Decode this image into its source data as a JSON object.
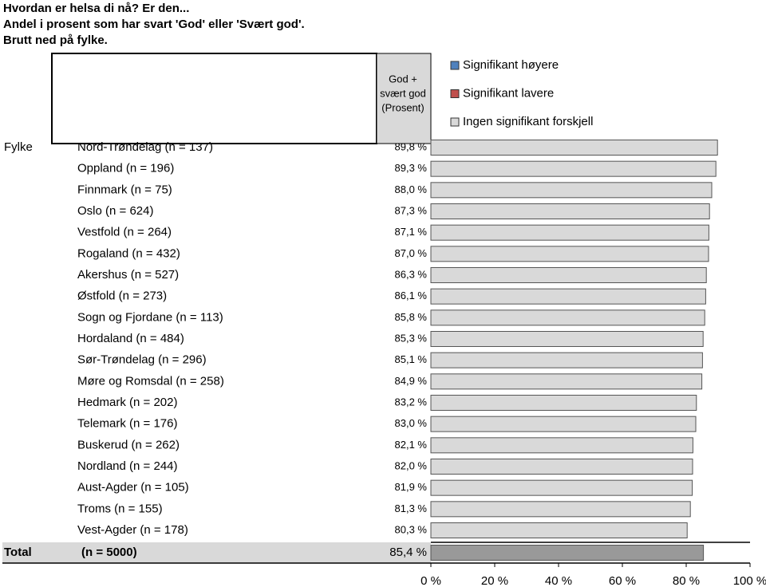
{
  "chart_data": {
    "type": "hbar",
    "title_lines": [
      "Hvordan er helsa di nå? Er den...",
      "Andel i prosent som har svart 'God' eller 'Svært god'.",
      "Brutt ned på fylke."
    ],
    "column_header": [
      "God +",
      "svært god",
      "(Prosent)"
    ],
    "group_label": "Fylke",
    "categories": [
      "Nord-Trøndelag (n = 137)",
      "Oppland (n = 196)",
      "Finnmark (n = 75)",
      "Oslo (n = 624)",
      "Vestfold (n = 264)",
      "Rogaland (n = 432)",
      "Akershus (n = 527)",
      "Østfold (n = 273)",
      "Sogn og Fjordane (n = 113)",
      "Hordaland (n = 484)",
      "Sør-Trøndelag (n = 296)",
      "Møre og Romsdal (n = 258)",
      "Hedmark (n = 202)",
      "Telemark (n = 176)",
      "Buskerud (n = 262)",
      "Nordland (n = 244)",
      "Aust-Agder (n = 105)",
      "Troms (n = 155)",
      "Vest-Agder (n = 178)"
    ],
    "values": [
      89.8,
      89.3,
      88.0,
      87.3,
      87.1,
      87.0,
      86.3,
      86.1,
      85.8,
      85.3,
      85.1,
      84.9,
      83.2,
      83.0,
      82.1,
      82.0,
      81.9,
      81.3,
      80.3
    ],
    "value_labels": [
      "89,8 %",
      "89,3 %",
      "88,0 %",
      "87,3 %",
      "87,1 %",
      "87,0 %",
      "86,3 %",
      "86,1 %",
      "85,8 %",
      "85,3 %",
      "85,1 %",
      "84,9 %",
      "83,2 %",
      "83,0 %",
      "82,1 %",
      "82,0 %",
      "81,9 %",
      "81,3 %",
      "80,3 %"
    ],
    "color": "#d9d9d9",
    "total": {
      "label": "Total",
      "n": "(n = 5000)",
      "value": 85.4,
      "value_label": "85,4 %",
      "color": "#999999"
    },
    "legend": [
      {
        "name": "Signifikant høyere",
        "color": "#4f81bd"
      },
      {
        "name": "Signifikant lavere",
        "color": "#c0504d"
      },
      {
        "name": "Ingen signifikant forskjell",
        "color": "#d9d9d9"
      }
    ],
    "xlim": [
      0,
      100
    ],
    "xticks": [
      {
        "value": 0,
        "label": "0 %"
      },
      {
        "value": 20,
        "label": "20 %"
      },
      {
        "value": 40,
        "label": "40 %"
      },
      {
        "value": 60,
        "label": "60 %"
      },
      {
        "value": 80,
        "label": "80 %"
      },
      {
        "value": 100,
        "label": "100 %"
      }
    ]
  }
}
